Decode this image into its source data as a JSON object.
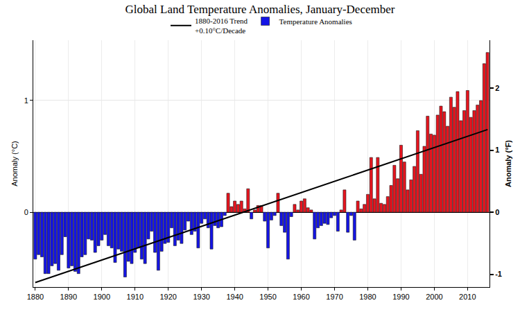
{
  "chart_data": {
    "type": "bar",
    "title": "Global Land Temperature Anomalies, January-December",
    "y_label": "Anomaly (°C)",
    "y2_label": "Anomaly (°F)",
    "x": [
      1880,
      1881,
      1882,
      1883,
      1884,
      1885,
      1886,
      1887,
      1888,
      1889,
      1890,
      1891,
      1892,
      1893,
      1894,
      1895,
      1896,
      1897,
      1898,
      1899,
      1900,
      1901,
      1902,
      1903,
      1904,
      1905,
      1906,
      1907,
      1908,
      1909,
      1910,
      1911,
      1912,
      1913,
      1914,
      1915,
      1916,
      1917,
      1918,
      1919,
      1920,
      1921,
      1922,
      1923,
      1924,
      1925,
      1926,
      1927,
      1928,
      1929,
      1930,
      1931,
      1932,
      1933,
      1934,
      1935,
      1936,
      1937,
      1938,
      1939,
      1940,
      1941,
      1942,
      1943,
      1944,
      1945,
      1946,
      1947,
      1948,
      1949,
      1950,
      1951,
      1952,
      1953,
      1954,
      1955,
      1956,
      1957,
      1958,
      1959,
      1960,
      1961,
      1962,
      1963,
      1964,
      1965,
      1966,
      1967,
      1968,
      1969,
      1970,
      1971,
      1972,
      1973,
      1974,
      1975,
      1976,
      1977,
      1978,
      1979,
      1980,
      1981,
      1982,
      1983,
      1984,
      1985,
      1986,
      1987,
      1988,
      1989,
      1990,
      1991,
      1992,
      1993,
      1994,
      1995,
      1996,
      1997,
      1998,
      1999,
      2000,
      2001,
      2002,
      2003,
      2004,
      2005,
      2006,
      2007,
      2008,
      2009,
      2010,
      2011,
      2012,
      2013,
      2014,
      2015,
      2016
    ],
    "series": [
      {
        "name": "1880-2016 Trend\n+0.10°C/Decade",
        "type": "line",
        "color": "#000000",
        "x": [
          1880,
          2016
        ],
        "values": [
          -0.63,
          0.74
        ]
      },
      {
        "name": "Temperature Anomalies",
        "type": "bar",
        "values": [
          -0.42,
          -0.38,
          -0.4,
          -0.55,
          -0.55,
          -0.48,
          -0.46,
          -0.52,
          -0.38,
          -0.22,
          -0.5,
          -0.48,
          -0.53,
          -0.55,
          -0.4,
          -0.38,
          -0.24,
          -0.25,
          -0.36,
          -0.3,
          -0.25,
          -0.2,
          -0.3,
          -0.32,
          -0.45,
          -0.33,
          -0.35,
          -0.58,
          -0.44,
          -0.46,
          -0.36,
          -0.32,
          -0.42,
          -0.46,
          -0.24,
          -0.17,
          -0.36,
          -0.52,
          -0.35,
          -0.28,
          -0.27,
          -0.14,
          -0.3,
          -0.25,
          -0.28,
          -0.16,
          -0.08,
          -0.2,
          -0.17,
          -0.32,
          -0.1,
          -0.06,
          -0.14,
          -0.33,
          -0.12,
          -0.14,
          -0.13,
          -0.03,
          0.17,
          0.05,
          0.1,
          0.07,
          0.1,
          0.03,
          0.21,
          -0.06,
          0.02,
          0.06,
          0.06,
          -0.08,
          -0.32,
          -0.07,
          -0.03,
          0.17,
          -0.12,
          -0.18,
          -0.42,
          -0.04,
          0.07,
          0.02,
          0.1,
          0.12,
          0.04,
          0.02,
          -0.24,
          -0.14,
          -0.12,
          -0.1,
          -0.11,
          -0.05,
          -0.03,
          -0.17,
          0.02,
          0.2,
          -0.18,
          -0.03,
          -0.25,
          0.1,
          0.03,
          0.07,
          0.16,
          0.49,
          0.12,
          0.49,
          0.08,
          0.07,
          0.14,
          0.24,
          0.42,
          0.3,
          0.6,
          0.45,
          0.2,
          0.29,
          0.41,
          0.73,
          0.34,
          0.59,
          0.86,
          0.7,
          0.69,
          0.87,
          0.95,
          0.9,
          0.77,
          1.03,
          0.94,
          1.08,
          0.82,
          0.91,
          1.09,
          0.85,
          0.91,
          0.96,
          1.0,
          1.33,
          1.43
        ],
        "colors": [
          "#1414e6",
          "#1414e6",
          "#1414e6",
          "#1414e6",
          "#1414e6",
          "#1414e6",
          "#1414e6",
          "#1414e6",
          "#1414e6",
          "#1414e6",
          "#1414e6",
          "#1414e6",
          "#1414e6",
          "#1414e6",
          "#1414e6",
          "#1414e6",
          "#1414e6",
          "#1414e6",
          "#1414e6",
          "#1414e6",
          "#1414e6",
          "#1414e6",
          "#1414e6",
          "#1414e6",
          "#1414e6",
          "#1414e6",
          "#1414e6",
          "#1414e6",
          "#1414e6",
          "#1414e6",
          "#1414e6",
          "#1414e6",
          "#1414e6",
          "#1414e6",
          "#1414e6",
          "#1414e6",
          "#1414e6",
          "#1414e6",
          "#1414e6",
          "#1414e6",
          "#1414e6",
          "#1414e6",
          "#1414e6",
          "#1414e6",
          "#1414e6",
          "#1414e6",
          "#1414e6",
          "#1414e6",
          "#1414e6",
          "#1414e6",
          "#1414e6",
          "#1414e6",
          "#1414e6",
          "#1414e6",
          "#1414e6",
          "#1414e6",
          "#1414e6",
          "#1414e6",
          "#e8141e",
          "#e8141e",
          "#e8141e",
          "#e8141e",
          "#e8141e",
          "#e8141e",
          "#e8141e",
          "#1414e6",
          "#e8141e",
          "#e8141e",
          "#e8141e",
          "#1414e6",
          "#1414e6",
          "#1414e6",
          "#1414e6",
          "#e8141e",
          "#1414e6",
          "#1414e6",
          "#1414e6",
          "#1414e6",
          "#e8141e",
          "#e8141e",
          "#e8141e",
          "#e8141e",
          "#e8141e",
          "#e8141e",
          "#1414e6",
          "#1414e6",
          "#1414e6",
          "#1414e6",
          "#1414e6",
          "#1414e6",
          "#1414e6",
          "#1414e6",
          "#e8141e",
          "#e8141e",
          "#1414e6",
          "#1414e6",
          "#1414e6",
          "#e8141e",
          "#e8141e",
          "#e8141e",
          "#e8141e",
          "#e8141e",
          "#e8141e",
          "#e8141e",
          "#e8141e",
          "#e8141e",
          "#e8141e",
          "#e8141e",
          "#e8141e",
          "#e8141e",
          "#e8141e",
          "#e8141e",
          "#e8141e",
          "#e8141e",
          "#e8141e",
          "#e8141e",
          "#e8141e",
          "#e8141e",
          "#e8141e",
          "#e8141e",
          "#e8141e",
          "#e8141e",
          "#e8141e",
          "#e8141e",
          "#e8141e",
          "#e8141e",
          "#e8141e",
          "#e8141e",
          "#e8141e",
          "#e8141e",
          "#e8141e",
          "#e8141e",
          "#e8141e",
          "#e8141e",
          "#e8141e",
          "#e8141e",
          "#e8141e"
        ]
      }
    ],
    "xlim": [
      1879.4,
      2016.6
    ],
    "xticks": [
      1880,
      1890,
      1900,
      1910,
      1920,
      1930,
      1940,
      1950,
      1960,
      1970,
      1980,
      1990,
      2000,
      2010
    ],
    "ylim": [
      -0.67,
      1.54
    ],
    "yticks": [
      0,
      1
    ],
    "y2lim": [
      -1.206,
      2.772
    ],
    "y2ticks": [
      -1,
      0,
      1,
      2
    ],
    "grid": true,
    "legend": "top"
  }
}
